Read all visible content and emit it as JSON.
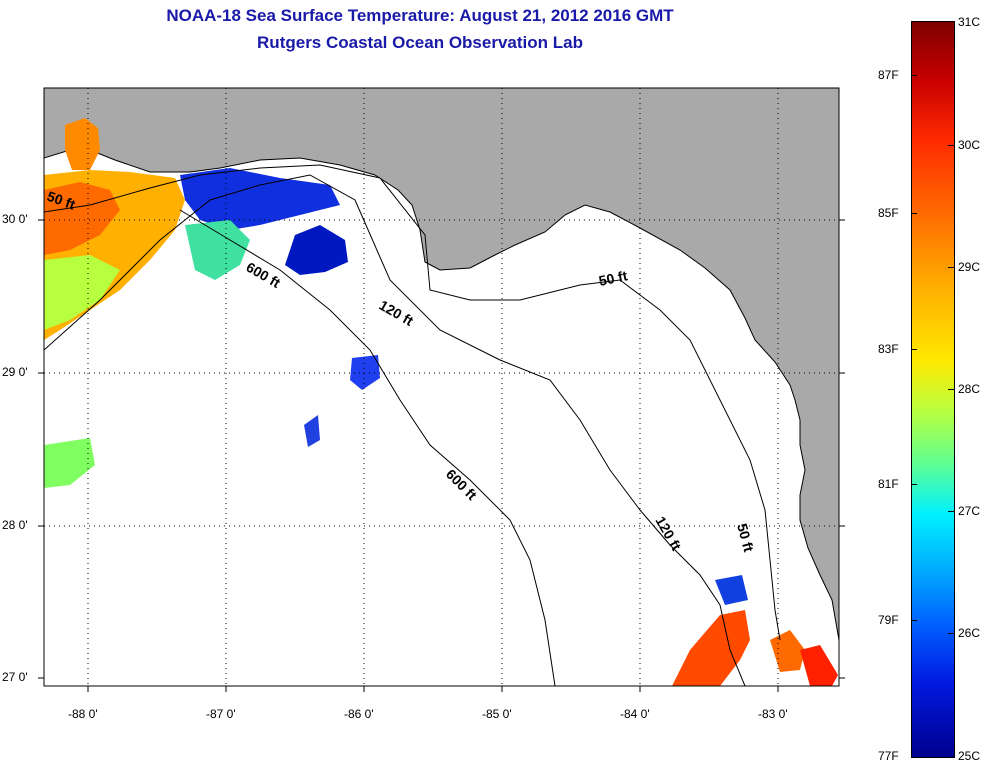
{
  "title": {
    "line1": "NOAA-18 Sea Surface Temperature:  August 21, 2012 2016 GMT",
    "line2": "Rutgers Coastal Ocean Observation Lab"
  },
  "map": {
    "lat_labels": [
      "30 0'",
      "29 0'",
      "28 0'",
      "27 0'"
    ],
    "lon_labels": [
      "-88 0'",
      "-87 0'",
      "-86 0'",
      "-85 0'",
      "-84 0'",
      "-83 0'"
    ],
    "contours": [
      "50 ft",
      "600 ft",
      "120 ft",
      "50 ft",
      "600 ft",
      "120 ft",
      "50 ft"
    ],
    "colors": {
      "land": "#a9a9a9",
      "ocean": "#ffffff",
      "grid": "#000000"
    }
  },
  "colorbar": {
    "celsius": [
      "31C",
      "30C",
      "29C",
      "28C",
      "27C",
      "26C",
      "25C"
    ],
    "fahrenheit": [
      "87F",
      "85F",
      "83F",
      "81F",
      "79F",
      "77F"
    ],
    "colors": [
      "#7f0000",
      "#ff2a00",
      "#ffae00",
      "#ffe800",
      "#60ff90",
      "#00f0ff",
      "#0060ff",
      "#00008f"
    ]
  }
}
